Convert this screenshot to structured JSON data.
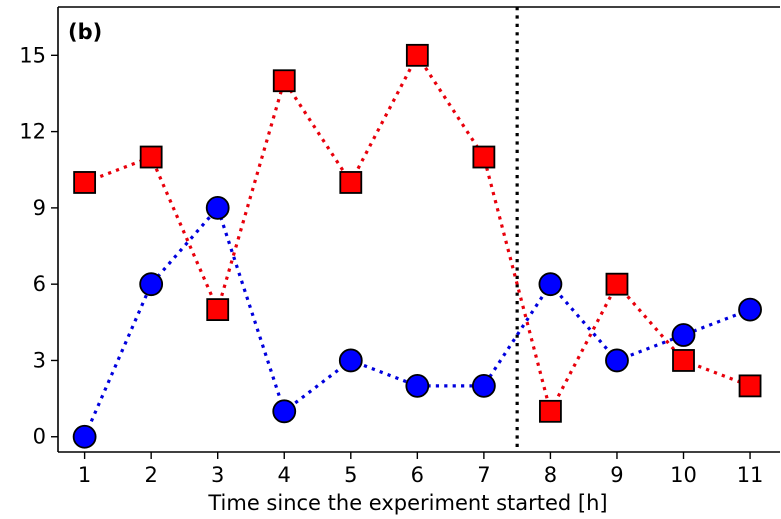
{
  "chart_data": {
    "type": "line",
    "panel_label": "(b)",
    "title": "",
    "xlabel": "Time since the experiment started [h]",
    "ylabel": "",
    "x": [
      1,
      2,
      3,
      4,
      5,
      6,
      7,
      8,
      9,
      10,
      11
    ],
    "xlim": [
      0.6,
      11.45
    ],
    "ylim": [
      -0.6,
      16.9
    ],
    "xticks": [
      1,
      2,
      3,
      4,
      5,
      6,
      7,
      8,
      9,
      10,
      11
    ],
    "yticks": [
      0,
      3,
      6,
      9,
      12,
      15
    ],
    "vline_x": 7.5,
    "grid": false,
    "legend": "none",
    "series": [
      {
        "marker": "square",
        "color": "#ff0000",
        "line_color": "#e8000b",
        "values": [
          10,
          11,
          5,
          14,
          10,
          15,
          11,
          1,
          6,
          3,
          2
        ]
      },
      {
        "marker": "circle",
        "color": "#0000ff",
        "line_color": "#0000dd",
        "values": [
          0,
          6,
          9,
          1,
          3,
          2,
          2,
          6,
          3,
          4,
          5
        ]
      }
    ]
  }
}
